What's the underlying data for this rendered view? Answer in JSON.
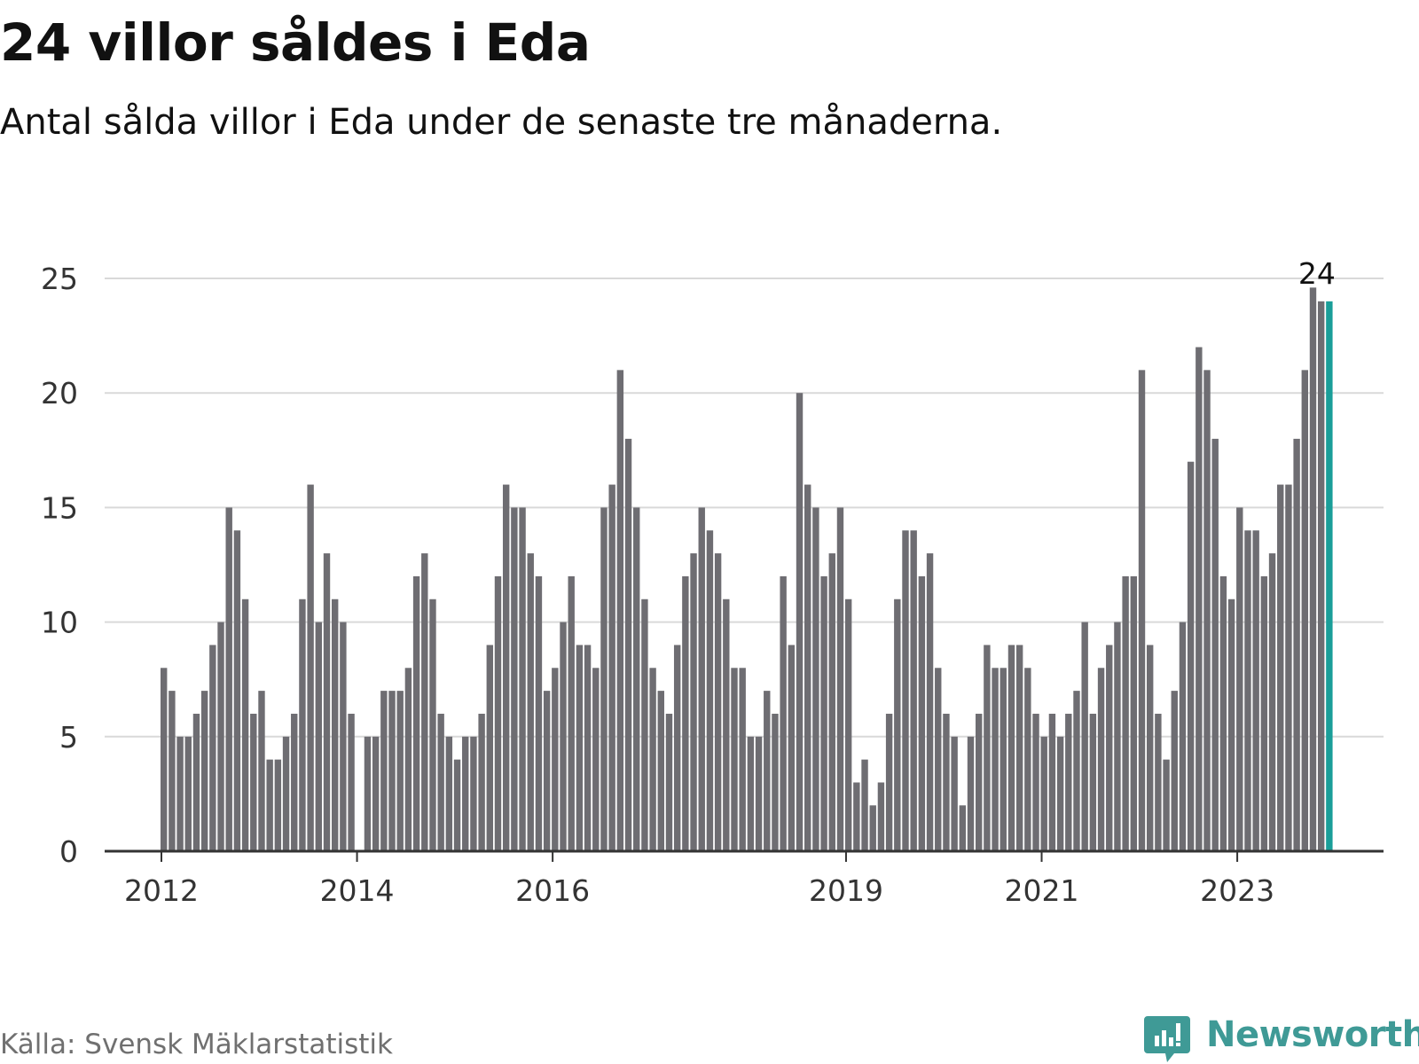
{
  "header": {
    "title": "24 villor såldes i Eda",
    "subtitle": "Antal sålda villor i Eda under de senaste tre månaderna."
  },
  "footer": {
    "source": "Källa: Svensk Mäklarstatistik",
    "brand": "Newsworthy",
    "brand_icon": "newsworthy-logo-icon"
  },
  "colors": {
    "bar": "#6e6d72",
    "highlight": "#1a9e99",
    "grid": "#d9d9d9",
    "axis": "#333333",
    "brand": "#3f9a96"
  },
  "chart_data": {
    "type": "bar",
    "x_start": "2012-01",
    "x_tick_labels": [
      {
        "label": "2012",
        "month_index": 0
      },
      {
        "label": "2014",
        "month_index": 24
      },
      {
        "label": "2016",
        "month_index": 48
      },
      {
        "label": "2019",
        "month_index": 84
      },
      {
        "label": "2021",
        "month_index": 108
      },
      {
        "label": "2023",
        "month_index": 132
      }
    ],
    "y_ticks": [
      0,
      5,
      10,
      15,
      20,
      25
    ],
    "ylim": [
      0,
      25
    ],
    "grid": true,
    "last_value_label": "24",
    "values": [
      8,
      7,
      5,
      5,
      6,
      7,
      9,
      10,
      15,
      14,
      11,
      6,
      7,
      4,
      4,
      5,
      6,
      11,
      16,
      10,
      13,
      11,
      10,
      6,
      0,
      5,
      5,
      7,
      7,
      7,
      8,
      12,
      13,
      11,
      6,
      5,
      4,
      5,
      5,
      6,
      9,
      12,
      16,
      15,
      15,
      13,
      12,
      7,
      8,
      10,
      12,
      9,
      9,
      8,
      15,
      16,
      21,
      18,
      15,
      11,
      8,
      7,
      6,
      9,
      12,
      13,
      15,
      14,
      13,
      11,
      8,
      8,
      5,
      5,
      7,
      6,
      12,
      9,
      20,
      16,
      15,
      12,
      13,
      15,
      11,
      3,
      4,
      2,
      3,
      6,
      11,
      14,
      14,
      12,
      13,
      8,
      6,
      5,
      2,
      5,
      6,
      9,
      8,
      8,
      9,
      9,
      8,
      6,
      5,
      6,
      5,
      6,
      7,
      10,
      6,
      8,
      9,
      10,
      12,
      12,
      21,
      9,
      6,
      4,
      7,
      10,
      17,
      22,
      21,
      18,
      12,
      11,
      15,
      14,
      14,
      12,
      13,
      16,
      16,
      18,
      21,
      24.6,
      24,
      24
    ]
  }
}
